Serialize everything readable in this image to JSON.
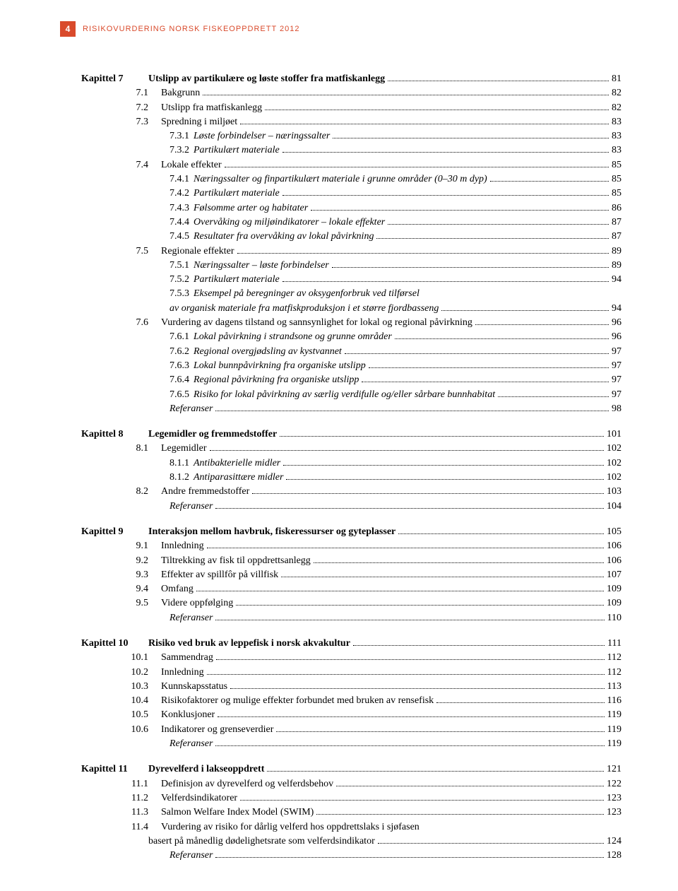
{
  "header": {
    "pageNumber": "4",
    "title": "RISIKOVURDERING NORSK FISKEOPPDRETT 2012"
  },
  "toc": [
    {
      "type": "chapter",
      "prefix": "Kapittel 7",
      "label": "Utslipp av partikulære og løste stoffer fra matfiskanlegg",
      "page": "81"
    },
    {
      "type": "section",
      "prefix": "7.1",
      "label": "Bakgrunn",
      "page": "82"
    },
    {
      "type": "section",
      "prefix": "7.2",
      "label": "Utslipp fra matfiskanlegg",
      "page": "82"
    },
    {
      "type": "section",
      "prefix": "7.3",
      "label": "Spredning i miljøet",
      "page": "83"
    },
    {
      "type": "subsection",
      "prefix": "7.3.1",
      "label": "Løste forbindelser – næringssalter",
      "page": "83"
    },
    {
      "type": "subsection",
      "prefix": "7.3.2",
      "label": "Partikulært materiale",
      "page": "83"
    },
    {
      "type": "section",
      "prefix": "7.4",
      "label": "Lokale effekter",
      "page": "85"
    },
    {
      "type": "subsection",
      "prefix": "7.4.1",
      "label": "Næringssalter og finpartikulært materiale i grunne områder (0–30 m dyp)",
      "page": "85"
    },
    {
      "type": "subsection",
      "prefix": "7.4.2",
      "label": "Partikulært materiale",
      "page": "85"
    },
    {
      "type": "subsection",
      "prefix": "7.4.3",
      "label": "Følsomme arter og habitater",
      "page": "86"
    },
    {
      "type": "subsection",
      "prefix": "7.4.4",
      "label": "Overvåking og miljøindikatorer – lokale effekter",
      "page": "87"
    },
    {
      "type": "subsection",
      "prefix": "7.4.5",
      "label": "Resultater fra overvåking av lokal påvirkning",
      "page": "87"
    },
    {
      "type": "section",
      "prefix": "7.5",
      "label": "Regionale effekter",
      "page": "89"
    },
    {
      "type": "subsection",
      "prefix": "7.5.1",
      "label": "Næringssalter – løste forbindelser",
      "page": "89"
    },
    {
      "type": "subsection",
      "prefix": "7.5.2",
      "label": "Partikulært materiale",
      "page": "94"
    },
    {
      "type": "subsection-multiline",
      "prefix": "7.5.3",
      "label": "Eksempel på beregninger av oksygenforbruk ved tilførsel",
      "label2": "av organisk materiale fra matfiskproduksjon i et større fjordbasseng",
      "page": "94"
    },
    {
      "type": "section",
      "prefix": "7.6",
      "label": "Vurdering av dagens tilstand og sannsynlighet for lokal og regional påvirkning",
      "page": "96"
    },
    {
      "type": "subsection",
      "prefix": "7.6.1",
      "label": "Lokal påvirkning i strandsone og grunne områder",
      "page": "96"
    },
    {
      "type": "subsection",
      "prefix": "7.6.2",
      "label": "Regional overgjødsling av kystvannet",
      "page": "97"
    },
    {
      "type": "subsection",
      "prefix": "7.6.3",
      "label": "Lokal bunnpåvirkning fra organiske utslipp",
      "page": "97"
    },
    {
      "type": "subsection",
      "prefix": "7.6.4",
      "label": "Regional påvirkning fra organiske utslipp",
      "page": "97"
    },
    {
      "type": "subsection",
      "prefix": "7.6.5",
      "label": "Risiko for lokal påvirkning av særlig verdifulle og/eller sårbare bunnhabitat",
      "page": "97"
    },
    {
      "type": "refs",
      "prefix": "",
      "label": "Referanser",
      "page": "98"
    },
    {
      "type": "chapter",
      "prefix": "Kapittel 8",
      "label": "Legemidler og fremmedstoffer",
      "page": "101"
    },
    {
      "type": "section",
      "prefix": "8.1",
      "label": "Legemidler",
      "page": "102"
    },
    {
      "type": "subsection",
      "prefix": "8.1.1",
      "label": "Antibakterielle midler",
      "page": "102"
    },
    {
      "type": "subsection",
      "prefix": "8.1.2",
      "label": "Antiparasittære midler",
      "page": "102"
    },
    {
      "type": "section",
      "prefix": "8.2",
      "label": "Andre fremmedstoffer",
      "page": "103"
    },
    {
      "type": "refs",
      "prefix": "",
      "label": "Referanser",
      "page": "104"
    },
    {
      "type": "chapter",
      "prefix": "Kapittel 9",
      "label": "Interaksjon mellom havbruk, fiskeressurser og gyteplasser",
      "page": "105"
    },
    {
      "type": "section",
      "prefix": "9.1",
      "label": "Innledning",
      "page": "106"
    },
    {
      "type": "section",
      "prefix": "9.2",
      "label": "Tiltrekking av fisk til oppdrettsanlegg",
      "page": "106"
    },
    {
      "type": "section",
      "prefix": "9.3",
      "label": "Effekter av spillfôr på villfisk",
      "page": "107"
    },
    {
      "type": "section",
      "prefix": "9.4",
      "label": "Omfang",
      "page": "109"
    },
    {
      "type": "section",
      "prefix": "9.5",
      "label": "Videre oppfølging",
      "page": "109"
    },
    {
      "type": "refs",
      "prefix": "",
      "label": "Referanser",
      "page": "110"
    },
    {
      "type": "chapter",
      "prefix": "Kapittel 10",
      "label": "Risiko ved bruk av leppefisk i norsk akvakultur",
      "page": "111"
    },
    {
      "type": "section",
      "prefix": "10.1",
      "label": "Sammendrag",
      "page": "112"
    },
    {
      "type": "section",
      "prefix": "10.2",
      "label": "Innledning",
      "page": "112"
    },
    {
      "type": "section",
      "prefix": "10.3",
      "label": "Kunnskapsstatus",
      "page": "113"
    },
    {
      "type": "section",
      "prefix": "10.4",
      "label": "Risikofaktorer og mulige effekter forbundet med bruken av rensefisk",
      "page": "116"
    },
    {
      "type": "section",
      "prefix": "10.5",
      "label": "Konklusjoner",
      "page": "119"
    },
    {
      "type": "section",
      "prefix": "10.6",
      "label": "Indikatorer og grenseverdier",
      "page": "119"
    },
    {
      "type": "refs",
      "prefix": "",
      "label": "Referanser",
      "page": "119"
    },
    {
      "type": "chapter",
      "prefix": "Kapittel 11",
      "label": "Dyrevelferd i lakseoppdrett",
      "page": "121"
    },
    {
      "type": "section",
      "prefix": "11.1",
      "label": "Definisjon av dyrevelferd og velferdsbehov",
      "page": "122"
    },
    {
      "type": "section",
      "prefix": "11.2",
      "label": "Velferdsindikatorer",
      "page": "123"
    },
    {
      "type": "section",
      "prefix": "11.3",
      "label": "Salmon Welfare Index Model (SWIM)",
      "page": "123"
    },
    {
      "type": "section-multiline",
      "prefix": "11.4",
      "label": "Vurdering av risiko for dårlig velferd hos oppdrettslaks i sjøfasen",
      "label2": "basert på månedlig dødelighetsrate som velferdsindikator",
      "page": "124"
    },
    {
      "type": "refs",
      "prefix": "",
      "label": "Referanser",
      "page": "128"
    }
  ]
}
